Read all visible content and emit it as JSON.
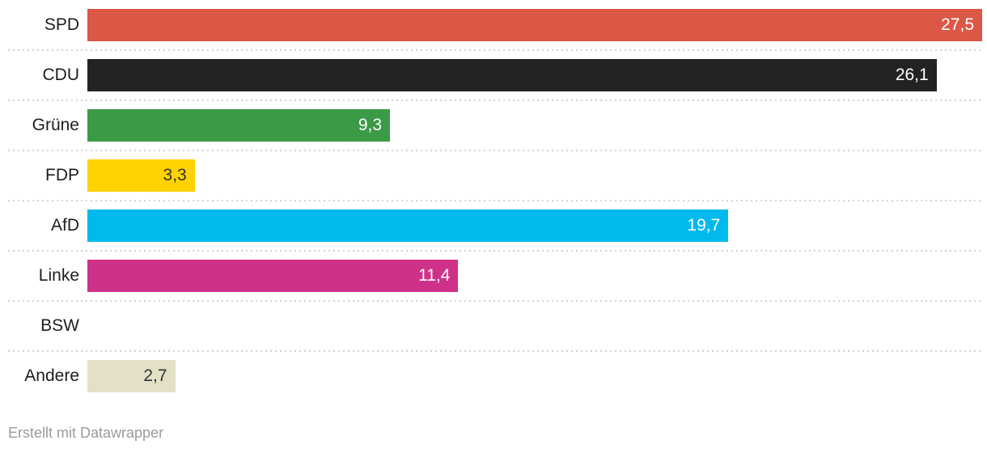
{
  "chart_data": {
    "type": "bar",
    "orientation": "horizontal",
    "title": "",
    "xlabel": "",
    "ylabel": "",
    "xlim": [
      0,
      27.5
    ],
    "grid": false,
    "legend": false,
    "row_separator_style": "dotted",
    "categories": [
      "SPD",
      "CDU",
      "Grüne",
      "FDP",
      "AfD",
      "Linke",
      "BSW",
      "Andere"
    ],
    "values": [
      27.5,
      26.1,
      9.3,
      3.3,
      19.7,
      11.4,
      null,
      2.7
    ],
    "value_labels": [
      "27,5",
      "26,1",
      "9,3",
      "3,3",
      "19,7",
      "11,4",
      "",
      "2,7"
    ],
    "bar_colors": [
      "#db5746",
      "#232323",
      "#3b9a46",
      "#ffd201",
      "#00b9ed",
      "#cf3189",
      null,
      "#e2e0c5"
    ],
    "value_text_colors": [
      "#ffffff",
      "#ffffff",
      "#ffffff",
      "#333333",
      "#ffffff",
      "#ffffff",
      null,
      "#333333"
    ],
    "label_color": "#1d1d1d",
    "separator_color": "#d2d2d2"
  },
  "footer": {
    "attribution": "Erstellt mit Datawrapper",
    "color": "#9b9b9b"
  }
}
